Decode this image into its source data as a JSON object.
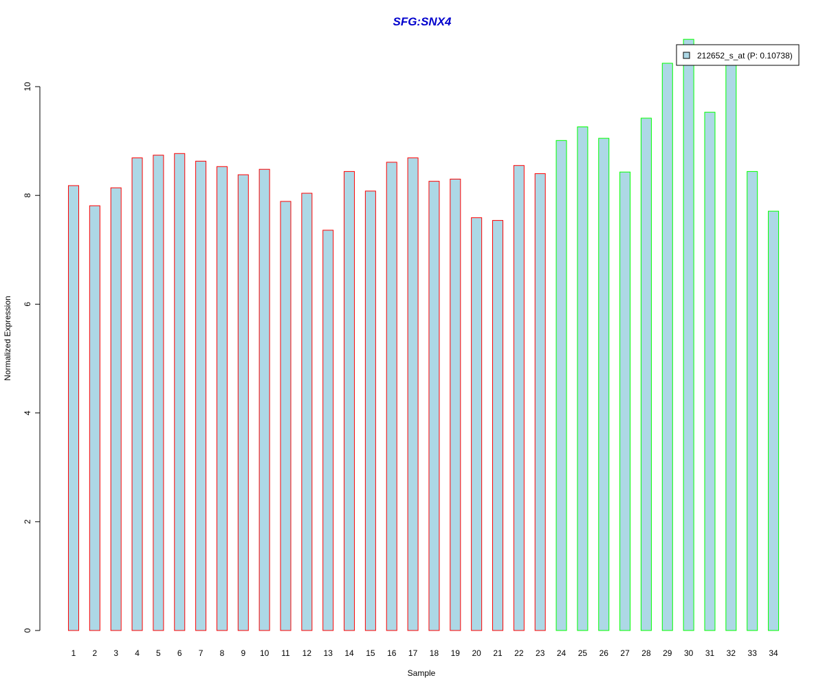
{
  "chart_data": {
    "type": "bar",
    "title": "SFG:SNX4",
    "xlabel": "Sample",
    "ylabel": "Normalized Expression",
    "categories": [
      "1",
      "2",
      "3",
      "4",
      "5",
      "6",
      "7",
      "8",
      "9",
      "10",
      "11",
      "12",
      "13",
      "14",
      "15",
      "16",
      "17",
      "18",
      "19",
      "20",
      "21",
      "22",
      "23",
      "24",
      "25",
      "26",
      "27",
      "28",
      "29",
      "30",
      "31",
      "32",
      "33",
      "34"
    ],
    "series": [
      {
        "name": "212652_s_at (P: 0.10738)",
        "values": [
          8.18,
          7.81,
          8.14,
          8.69,
          8.74,
          8.77,
          8.63,
          8.53,
          8.38,
          8.48,
          7.89,
          8.04,
          7.36,
          8.44,
          8.08,
          8.61,
          8.69,
          8.26,
          8.3,
          7.59,
          7.54,
          8.55,
          8.4,
          9.01,
          9.26,
          9.05,
          8.43,
          9.42,
          10.43,
          10.87,
          9.53,
          10.46,
          8.44,
          7.71
        ],
        "group": [
          "a",
          "a",
          "a",
          "a",
          "a",
          "a",
          "a",
          "a",
          "a",
          "a",
          "a",
          "a",
          "a",
          "a",
          "a",
          "a",
          "a",
          "a",
          "a",
          "a",
          "a",
          "a",
          "a",
          "b",
          "b",
          "b",
          "b",
          "b",
          "b",
          "b",
          "b",
          "b",
          "b",
          "b"
        ]
      }
    ],
    "ylim": [
      0,
      10
    ],
    "yticks": [
      0,
      2,
      4,
      6,
      8,
      10
    ],
    "grid": false,
    "legend_position": "top-right",
    "colors": {
      "bar_fill": "#add8e6",
      "group_a_border": "#ff0000",
      "group_b_border": "#00ff00",
      "title": "#0000cd",
      "axis": "#000000"
    }
  }
}
